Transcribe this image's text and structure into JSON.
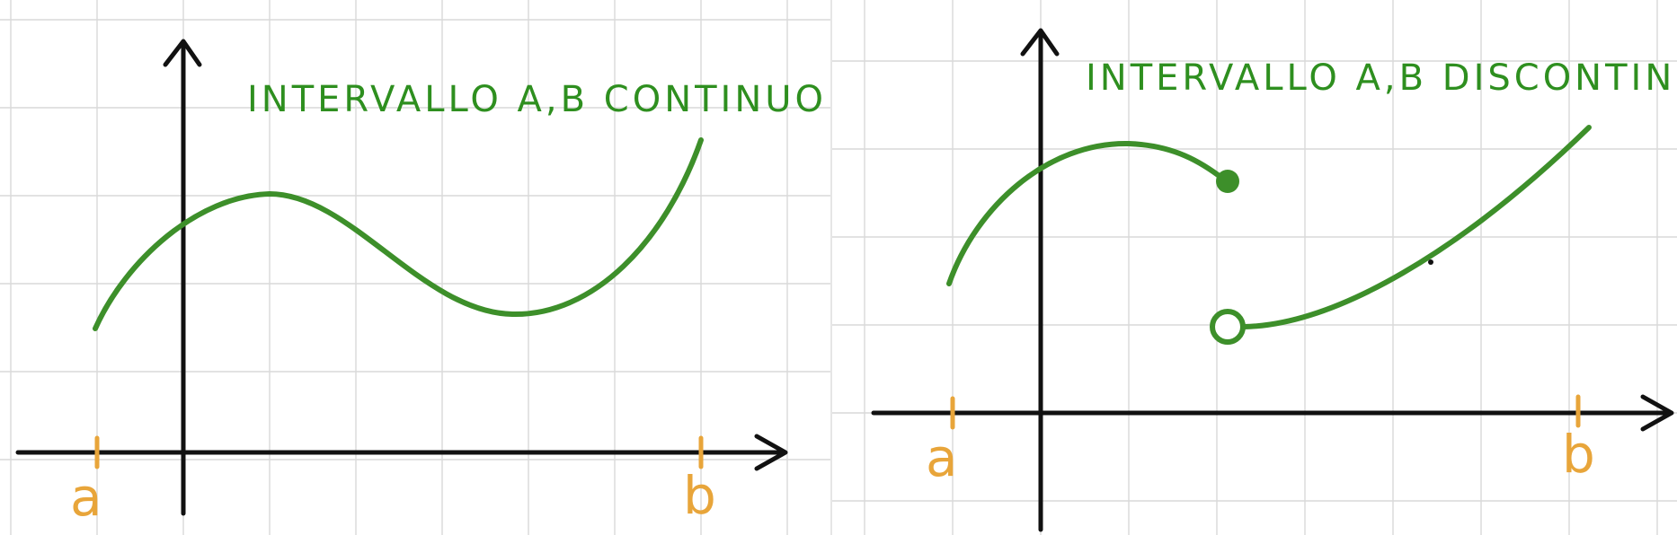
{
  "colors": {
    "grid": "#d9d9d9",
    "axis": "#111111",
    "curve": "#3d8f2a",
    "title": "#2e8f1f",
    "marker": "#e8a53a"
  },
  "left_panel": {
    "title": "INTERVALLO A,B CONTINUO",
    "label_a": "a",
    "label_b": "b"
  },
  "right_panel": {
    "title": "INTERVALLO A,B DISCONTINUO",
    "label_a": "a",
    "label_b": "b"
  }
}
